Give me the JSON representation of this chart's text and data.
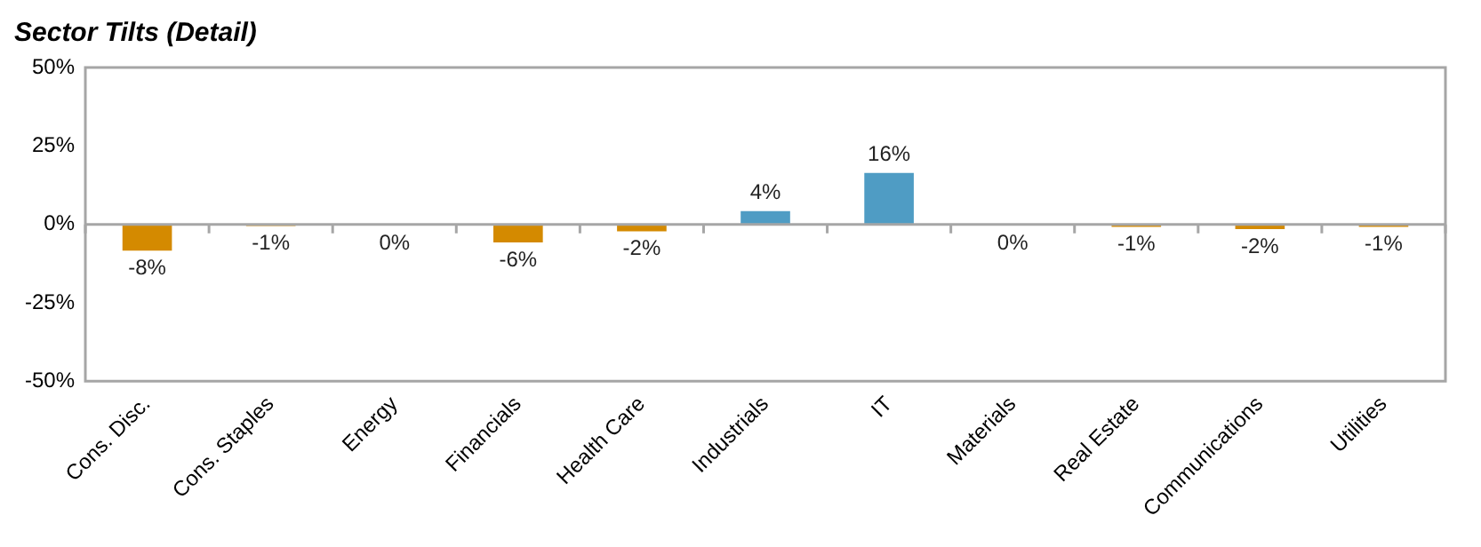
{
  "chart_data": {
    "type": "bar",
    "title": "Sector Tilts (Detail)",
    "categories": [
      "Cons. Disc.",
      "Cons. Staples",
      "Energy",
      "Financials",
      "Health Care",
      "Industrials",
      "IT",
      "Materials",
      "Real Estate",
      "Communications",
      "Utilities"
    ],
    "values": [
      -8.4,
      -0.5,
      -0.4,
      -5.8,
      -2.2,
      4.2,
      16.4,
      -0.4,
      -0.8,
      -1.5,
      -0.8
    ],
    "value_labels": [
      "-8%",
      "-1%",
      "0%",
      "-6%",
      "-2%",
      "4%",
      "16%",
      "0%",
      "-1%",
      "-2%",
      "-1%"
    ],
    "ref_lines": [
      {
        "axis": "y",
        "value": 0,
        "color": "#a6a6a6"
      }
    ],
    "colors": [
      "#d48a00",
      "#d48a00",
      "#d48a00",
      "#d48a00",
      "#d48a00",
      "#4f9cc4",
      "#4f9cc4",
      "#d48a00",
      "#d48a00",
      "#d48a00",
      "#d48a00"
    ],
    "ylim": [
      -50,
      50
    ],
    "yticks": [
      {
        "value": -50,
        "label": "-50%"
      },
      {
        "value": -25,
        "label": "-25%"
      },
      {
        "value": 0,
        "label": "0%"
      },
      {
        "value": 25,
        "label": "25%"
      },
      {
        "value": 50,
        "label": "50%"
      }
    ],
    "grid": false,
    "legend": false
  }
}
